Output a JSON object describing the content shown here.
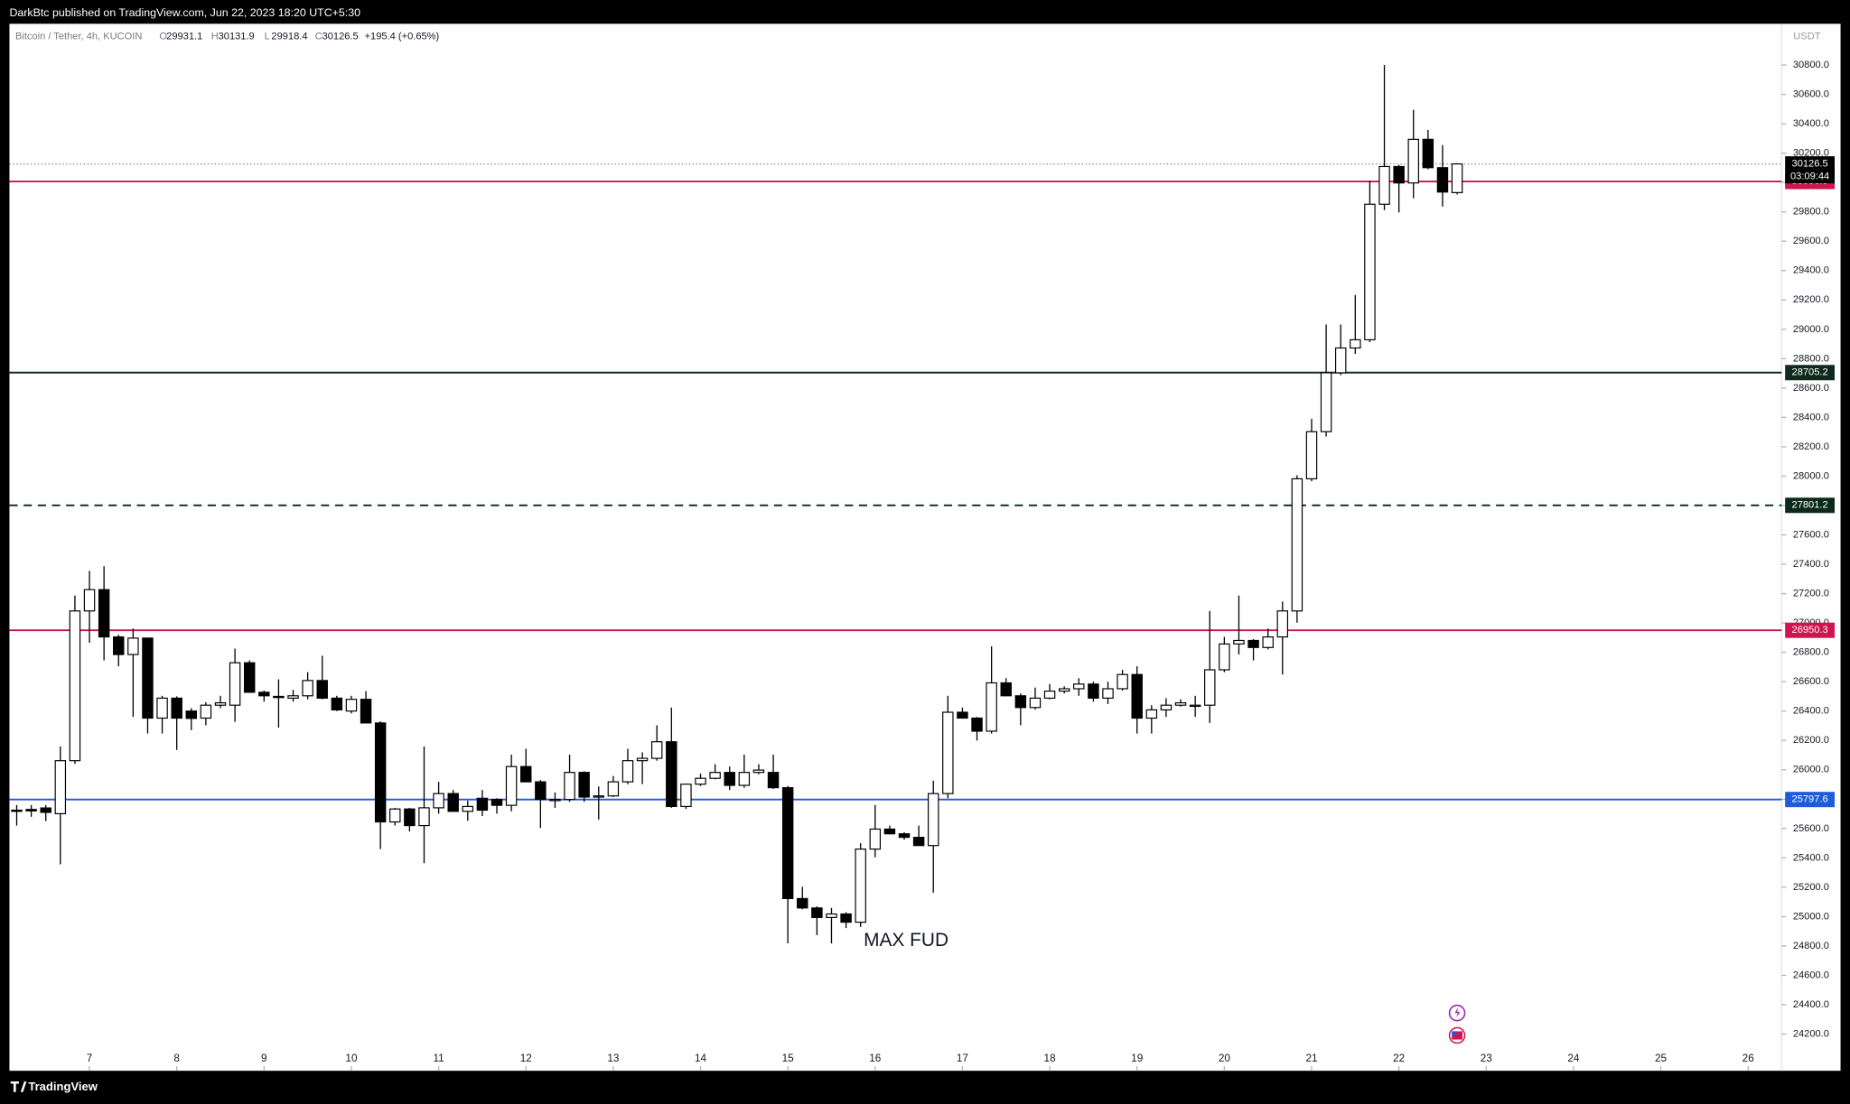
{
  "header": {
    "text": "DarkBtc published on TradingView.com, Jun 22, 2023 18:20 UTC+5:30"
  },
  "footer": {
    "brand": "TradingView"
  },
  "chart_data": {
    "type": "candlestick",
    "symbol": "Bitcoin / Tether, 4h, KUCOIN",
    "ohlc_labels": [
      "O",
      "H",
      "L",
      "C"
    ],
    "change": "+195.4 (+0.65%)",
    "y_axis_label": "USDT",
    "countdown": "03:09:44",
    "annotation": "MAX FUD",
    "up_color": "#ffffff",
    "down_color": "#000000",
    "border_color": "#000000",
    "xlim": [
      -0.5,
      121.3
    ],
    "xticks": [
      {
        "value": 5,
        "label": "7"
      },
      {
        "value": 11,
        "label": "8"
      },
      {
        "value": 17,
        "label": "9"
      },
      {
        "value": 23,
        "label": "10"
      },
      {
        "value": 29,
        "label": "11"
      },
      {
        "value": 35,
        "label": "12"
      },
      {
        "value": 41,
        "label": "13"
      },
      {
        "value": 47,
        "label": "14"
      },
      {
        "value": 53,
        "label": "15"
      },
      {
        "value": 59,
        "label": "16"
      },
      {
        "value": 65,
        "label": "17"
      },
      {
        "value": 71,
        "label": "18"
      },
      {
        "value": 77,
        "label": "19"
      },
      {
        "value": 83,
        "label": "20"
      },
      {
        "value": 89,
        "label": "21"
      },
      {
        "value": 95,
        "label": "22"
      },
      {
        "value": 101,
        "label": "23"
      },
      {
        "value": 107,
        "label": "24"
      },
      {
        "value": 113,
        "label": "25"
      },
      {
        "value": 119,
        "label": "26"
      }
    ],
    "ylim": [
      23950,
      31081
    ],
    "yticks": [
      {
        "value": 24200,
        "label": "24200.0"
      },
      {
        "value": 24400,
        "label": "24400.0"
      },
      {
        "value": 24600,
        "label": "24600.0"
      },
      {
        "value": 24800,
        "label": "24800.0"
      },
      {
        "value": 25000,
        "label": "25000.0"
      },
      {
        "value": 25200,
        "label": "25200.0"
      },
      {
        "value": 25400,
        "label": "25400.0"
      },
      {
        "value": 25600,
        "label": "25600.0"
      },
      {
        "value": 25800,
        "label": "25800.0"
      },
      {
        "value": 26000,
        "label": "26000.0"
      },
      {
        "value": 26200,
        "label": "26200.0"
      },
      {
        "value": 26400,
        "label": "26400.0"
      },
      {
        "value": 26600,
        "label": "26600.0"
      },
      {
        "value": 26800,
        "label": "26800.0"
      },
      {
        "value": 27000,
        "label": "27000.0"
      },
      {
        "value": 27200,
        "label": "27200.0"
      },
      {
        "value": 27400,
        "label": "27400.0"
      },
      {
        "value": 27600,
        "label": "27600.0"
      },
      {
        "value": 27800,
        "label": "27800.0"
      },
      {
        "value": 28000,
        "label": "28000.0"
      },
      {
        "value": 28200,
        "label": "28200.0"
      },
      {
        "value": 28400,
        "label": "28400.0"
      },
      {
        "value": 28600,
        "label": "28600.0"
      },
      {
        "value": 28800,
        "label": "28800.0"
      },
      {
        "value": 29000,
        "label": "29000.0"
      },
      {
        "value": 29200,
        "label": "29200.0"
      },
      {
        "value": 29400,
        "label": "29400.0"
      },
      {
        "value": 29600,
        "label": "29600.0"
      },
      {
        "value": 29800,
        "label": "29800.0"
      },
      {
        "value": 30000,
        "label": "30000.0"
      },
      {
        "value": 30200,
        "label": "30200.0"
      },
      {
        "value": 30400,
        "label": "30400.0"
      },
      {
        "value": 30600,
        "label": "30600.0"
      },
      {
        "value": 30800,
        "label": "30800.0"
      }
    ],
    "levels": [
      {
        "value": 30006.9,
        "color": "#d0144f",
        "dashed": false
      },
      {
        "value": 28705.2,
        "color": "#0e2a1f",
        "dashed": false
      },
      {
        "value": 27801.2,
        "color": "#0b2a1d",
        "dashed": true
      },
      {
        "value": 26950.3,
        "color": "#d0144f",
        "dashed": false
      },
      {
        "value": 25797.6,
        "color": "#1e5bd8",
        "dashed": false
      }
    ],
    "candles": [
      {
        "o": 25725,
        "h": 25760,
        "l": 25620,
        "c": 25717
      },
      {
        "o": 25730,
        "h": 25760,
        "l": 25680,
        "c": 25720
      },
      {
        "o": 25740,
        "h": 25760,
        "l": 25650,
        "c": 25710
      },
      {
        "o": 25701,
        "h": 26159,
        "l": 25356,
        "c": 26062
      },
      {
        "o": 26062,
        "h": 27187,
        "l": 26040,
        "c": 27082
      },
      {
        "o": 27082,
        "h": 27355,
        "l": 26865,
        "c": 27227
      },
      {
        "o": 27227,
        "h": 27387,
        "l": 26745,
        "c": 26905
      },
      {
        "o": 26905,
        "h": 26920,
        "l": 26705,
        "c": 26785
      },
      {
        "o": 26785,
        "h": 26962,
        "l": 26360,
        "c": 26897
      },
      {
        "o": 26897,
        "h": 26900,
        "l": 26247,
        "c": 26352
      },
      {
        "o": 26352,
        "h": 26504,
        "l": 26247,
        "c": 26488
      },
      {
        "o": 26488,
        "h": 26500,
        "l": 26135,
        "c": 26352
      },
      {
        "o": 26400,
        "h": 26420,
        "l": 26270,
        "c": 26350
      },
      {
        "o": 26352,
        "h": 26460,
        "l": 26303,
        "c": 26440
      },
      {
        "o": 26440,
        "h": 26504,
        "l": 26420,
        "c": 26456
      },
      {
        "o": 26440,
        "h": 26825,
        "l": 26327,
        "c": 26729
      },
      {
        "o": 26729,
        "h": 26745,
        "l": 26528,
        "c": 26528
      },
      {
        "o": 26528,
        "h": 26540,
        "l": 26464,
        "c": 26504
      },
      {
        "o": 26500,
        "h": 26616,
        "l": 26287,
        "c": 26496
      },
      {
        "o": 26488,
        "h": 26544,
        "l": 26464,
        "c": 26504
      },
      {
        "o": 26504,
        "h": 26665,
        "l": 26480,
        "c": 26608
      },
      {
        "o": 26608,
        "h": 26777,
        "l": 26480,
        "c": 26488
      },
      {
        "o": 26488,
        "h": 26504,
        "l": 26400,
        "c": 26408
      },
      {
        "o": 26400,
        "h": 26504,
        "l": 26384,
        "c": 26480
      },
      {
        "o": 26480,
        "h": 26536,
        "l": 26319,
        "c": 26319
      },
      {
        "o": 26319,
        "h": 26330,
        "l": 25460,
        "c": 25645
      },
      {
        "o": 25645,
        "h": 25741,
        "l": 25620,
        "c": 25733
      },
      {
        "o": 25733,
        "h": 25741,
        "l": 25580,
        "c": 25620
      },
      {
        "o": 25620,
        "h": 26159,
        "l": 25364,
        "c": 25741
      },
      {
        "o": 25741,
        "h": 25918,
        "l": 25701,
        "c": 25838
      },
      {
        "o": 25838,
        "h": 25862,
        "l": 25717,
        "c": 25717
      },
      {
        "o": 25717,
        "h": 25790,
        "l": 25653,
        "c": 25750
      },
      {
        "o": 25806,
        "h": 25862,
        "l": 25685,
        "c": 25725
      },
      {
        "o": 25798,
        "h": 25806,
        "l": 25701,
        "c": 25758
      },
      {
        "o": 25758,
        "h": 26103,
        "l": 25717,
        "c": 26022
      },
      {
        "o": 26022,
        "h": 26143,
        "l": 25918,
        "c": 25918
      },
      {
        "o": 25918,
        "h": 25930,
        "l": 25604,
        "c": 25798
      },
      {
        "o": 25790,
        "h": 25846,
        "l": 25741,
        "c": 25798
      },
      {
        "o": 25798,
        "h": 26103,
        "l": 25782,
        "c": 25982
      },
      {
        "o": 25982,
        "h": 25990,
        "l": 25782,
        "c": 25814
      },
      {
        "o": 25814,
        "h": 25886,
        "l": 25661,
        "c": 25822
      },
      {
        "o": 25822,
        "h": 25958,
        "l": 25814,
        "c": 25918
      },
      {
        "o": 25918,
        "h": 26143,
        "l": 25902,
        "c": 26062
      },
      {
        "o": 26062,
        "h": 26119,
        "l": 25902,
        "c": 26078
      },
      {
        "o": 26078,
        "h": 26303,
        "l": 26062,
        "c": 26191
      },
      {
        "o": 26191,
        "h": 26424,
        "l": 25741,
        "c": 25750
      },
      {
        "o": 25750,
        "h": 25902,
        "l": 25733,
        "c": 25902
      },
      {
        "o": 25902,
        "h": 25974,
        "l": 25890,
        "c": 25942
      },
      {
        "o": 25942,
        "h": 26038,
        "l": 25935,
        "c": 25982
      },
      {
        "o": 25982,
        "h": 26022,
        "l": 25862,
        "c": 25894
      },
      {
        "o": 25894,
        "h": 26103,
        "l": 25878,
        "c": 25982
      },
      {
        "o": 25982,
        "h": 26038,
        "l": 25970,
        "c": 25998
      },
      {
        "o": 25982,
        "h": 26103,
        "l": 25870,
        "c": 25878
      },
      {
        "o": 25878,
        "h": 25890,
        "l": 24818,
        "c": 25123
      },
      {
        "o": 25123,
        "h": 25203,
        "l": 25050,
        "c": 25059
      },
      {
        "o": 25059,
        "h": 25070,
        "l": 24874,
        "c": 24994
      },
      {
        "o": 24994,
        "h": 25059,
        "l": 24818,
        "c": 25018
      },
      {
        "o": 25018,
        "h": 25030,
        "l": 24922,
        "c": 24962
      },
      {
        "o": 24962,
        "h": 25500,
        "l": 24930,
        "c": 25460
      },
      {
        "o": 25460,
        "h": 25760,
        "l": 25404,
        "c": 25596
      },
      {
        "o": 25596,
        "h": 25620,
        "l": 25560,
        "c": 25564
      },
      {
        "o": 25564,
        "h": 25575,
        "l": 25524,
        "c": 25540
      },
      {
        "o": 25540,
        "h": 25620,
        "l": 25484,
        "c": 25484
      },
      {
        "o": 25484,
        "h": 25926,
        "l": 25163,
        "c": 25838
      },
      {
        "o": 25838,
        "h": 26504,
        "l": 25806,
        "c": 26392
      },
      {
        "o": 26392,
        "h": 26424,
        "l": 26352,
        "c": 26352
      },
      {
        "o": 26352,
        "h": 26360,
        "l": 26199,
        "c": 26263
      },
      {
        "o": 26263,
        "h": 26841,
        "l": 26247,
        "c": 26592
      },
      {
        "o": 26592,
        "h": 26624,
        "l": 26504,
        "c": 26504
      },
      {
        "o": 26504,
        "h": 26520,
        "l": 26303,
        "c": 26424
      },
      {
        "o": 26424,
        "h": 26560,
        "l": 26410,
        "c": 26488
      },
      {
        "o": 26488,
        "h": 26584,
        "l": 26480,
        "c": 26536
      },
      {
        "o": 26536,
        "h": 26568,
        "l": 26520,
        "c": 26552
      },
      {
        "o": 26552,
        "h": 26624,
        "l": 26504,
        "c": 26584
      },
      {
        "o": 26584,
        "h": 26600,
        "l": 26464,
        "c": 26488
      },
      {
        "o": 26488,
        "h": 26600,
        "l": 26448,
        "c": 26552
      },
      {
        "o": 26552,
        "h": 26681,
        "l": 26540,
        "c": 26649
      },
      {
        "o": 26649,
        "h": 26705,
        "l": 26247,
        "c": 26352
      },
      {
        "o": 26352,
        "h": 26440,
        "l": 26247,
        "c": 26408
      },
      {
        "o": 26408,
        "h": 26488,
        "l": 26360,
        "c": 26440
      },
      {
        "o": 26440,
        "h": 26480,
        "l": 26430,
        "c": 26456
      },
      {
        "o": 26436,
        "h": 26504,
        "l": 26360,
        "c": 26440
      },
      {
        "o": 26440,
        "h": 27082,
        "l": 26319,
        "c": 26681
      },
      {
        "o": 26681,
        "h": 26905,
        "l": 26665,
        "c": 26857
      },
      {
        "o": 26857,
        "h": 27187,
        "l": 26785,
        "c": 26881
      },
      {
        "o": 26881,
        "h": 26890,
        "l": 26745,
        "c": 26833
      },
      {
        "o": 26833,
        "h": 26962,
        "l": 26820,
        "c": 26905
      },
      {
        "o": 26905,
        "h": 27146,
        "l": 26649,
        "c": 27082
      },
      {
        "o": 27082,
        "h": 28006,
        "l": 27002,
        "c": 27982
      },
      {
        "o": 27982,
        "h": 28391,
        "l": 27965,
        "c": 28303
      },
      {
        "o": 28303,
        "h": 29033,
        "l": 28270,
        "c": 28704
      },
      {
        "o": 28704,
        "h": 29033,
        "l": 28688,
        "c": 28873
      },
      {
        "o": 28873,
        "h": 29234,
        "l": 28833,
        "c": 28929
      },
      {
        "o": 28929,
        "h": 30013,
        "l": 28913,
        "c": 29852
      },
      {
        "o": 29852,
        "h": 30800,
        "l": 29812,
        "c": 30109
      },
      {
        "o": 30109,
        "h": 30120,
        "l": 29796,
        "c": 29997
      },
      {
        "o": 29997,
        "h": 30495,
        "l": 29893,
        "c": 30294
      },
      {
        "o": 30294,
        "h": 30358,
        "l": 30090,
        "c": 30101
      },
      {
        "o": 30101,
        "h": 30254,
        "l": 29836,
        "c": 29935
      },
      {
        "o": 29931.1,
        "h": 30131.9,
        "l": 29918.4,
        "c": 30126.5
      }
    ]
  }
}
